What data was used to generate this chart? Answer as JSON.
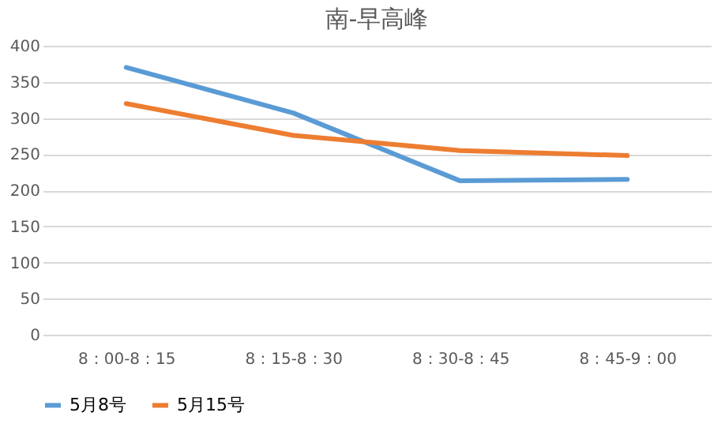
{
  "chart_data": {
    "type": "line",
    "title": "南-早高峰",
    "categories": [
      "8：00-8：15",
      "8：15-8：30",
      "8：30-8：45",
      "8：45-9：00"
    ],
    "series": [
      {
        "name": "5月8号",
        "color": "#5b9bd5",
        "values": [
          370,
          307,
          213,
          215
        ]
      },
      {
        "name": "5月15号",
        "color": "#ed7d31",
        "values": [
          320,
          276,
          255,
          248
        ]
      }
    ],
    "ylim": [
      0,
      400
    ],
    "yticks": [
      0,
      50,
      100,
      150,
      200,
      250,
      300,
      350,
      400
    ],
    "grid": "y",
    "legend": "bottom",
    "marker": "none",
    "line_style": "solid"
  }
}
